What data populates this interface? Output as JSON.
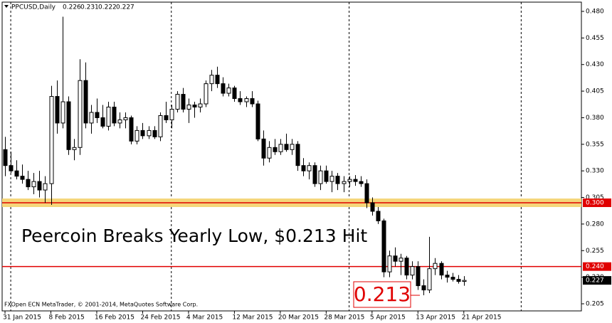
{
  "chart_data": {
    "type": "candlestick",
    "symbol": "PPCUSD,Daily",
    "annotation": "Peercoin Breaks Yearly Low, $0.213 Hit",
    "callout": {
      "value": 0.213,
      "label": "0.213"
    },
    "footer": "FXOpen ECN MetaTrader, © 2001-2014, MetaQuotes Software Corp.",
    "categories": [
      "31 Jan 2015",
      null,
      null,
      null,
      null,
      null,
      null,
      null,
      "8 Feb 2015",
      null,
      null,
      null,
      null,
      null,
      null,
      null,
      "16 Feb 2015",
      null,
      null,
      null,
      null,
      null,
      null,
      null,
      "24 Feb 2015",
      null,
      null,
      null,
      null,
      null,
      null,
      null,
      "4 Mar 2015",
      null,
      null,
      null,
      null,
      null,
      null,
      null,
      "12 Mar 2015",
      null,
      null,
      null,
      null,
      null,
      null,
      null,
      "20 Mar 2015",
      null,
      null,
      null,
      null,
      null,
      null,
      null,
      "28 Mar 2015",
      null,
      null,
      null,
      null,
      null,
      null,
      null,
      "5 Apr 2015",
      null,
      null,
      null,
      null,
      null,
      null,
      null,
      "13 Apr 2015",
      null,
      null,
      null,
      null,
      null,
      null,
      null,
      "21 Apr 2015"
    ],
    "open": [
      0.35,
      0.335,
      0.33,
      0.325,
      0.322,
      0.315,
      0.32,
      0.312,
      0.318,
      0.4,
      0.375,
      0.395,
      0.35,
      0.352,
      0.415,
      0.375,
      0.385,
      0.38,
      0.372,
      0.39,
      0.375,
      0.378,
      0.38,
      0.358,
      0.368,
      0.363,
      0.368,
      0.362,
      0.382,
      0.378,
      0.388,
      0.402,
      0.388,
      0.392,
      0.39,
      0.393,
      0.412,
      0.42,
      0.412,
      0.403,
      0.408,
      0.398,
      0.395,
      0.398,
      0.393,
      0.36,
      0.342,
      0.352,
      0.348,
      0.355,
      0.35,
      0.355,
      0.335,
      0.33,
      0.335,
      0.318,
      0.33,
      0.32,
      0.325,
      0.318,
      0.32,
      0.322,
      0.32,
      0.318,
      0.3,
      0.292,
      0.283,
      0.235,
      0.25,
      0.245,
      0.248,
      0.232,
      0.24,
      0.222,
      0.218,
      0.238,
      0.243,
      0.232,
      0.23,
      0.228,
      0.226
    ],
    "high": [
      0.362,
      0.348,
      0.34,
      0.336,
      0.33,
      0.328,
      0.33,
      0.325,
      0.41,
      0.415,
      0.475,
      0.4,
      0.36,
      0.435,
      0.432,
      0.392,
      0.398,
      0.392,
      0.395,
      0.395,
      0.385,
      0.385,
      0.382,
      0.372,
      0.375,
      0.372,
      0.372,
      0.385,
      0.395,
      0.392,
      0.405,
      0.408,
      0.398,
      0.395,
      0.398,
      0.415,
      0.425,
      0.428,
      0.418,
      0.412,
      0.41,
      0.405,
      0.4,
      0.405,
      0.396,
      0.368,
      0.358,
      0.36,
      0.36,
      0.365,
      0.36,
      0.358,
      0.342,
      0.338,
      0.338,
      0.335,
      0.335,
      0.33,
      0.328,
      0.325,
      0.325,
      0.326,
      0.325,
      0.322,
      0.305,
      0.296,
      0.285,
      0.255,
      0.258,
      0.252,
      0.25,
      0.245,
      0.245,
      0.228,
      0.268,
      0.248,
      0.245,
      0.236,
      0.234,
      0.232,
      0.231
    ],
    "low": [
      0.325,
      0.328,
      0.322,
      0.318,
      0.312,
      0.308,
      0.305,
      0.3,
      0.298,
      0.365,
      0.37,
      0.345,
      0.34,
      0.345,
      0.37,
      0.365,
      0.375,
      0.37,
      0.368,
      0.372,
      0.37,
      0.37,
      0.355,
      0.355,
      0.36,
      0.36,
      0.36,
      0.358,
      0.375,
      0.37,
      0.385,
      0.385,
      0.375,
      0.38,
      0.385,
      0.39,
      0.405,
      0.408,
      0.4,
      0.4,
      0.395,
      0.392,
      0.39,
      0.39,
      0.358,
      0.335,
      0.338,
      0.345,
      0.345,
      0.348,
      0.345,
      0.33,
      0.325,
      0.322,
      0.315,
      0.312,
      0.318,
      0.31,
      0.312,
      0.31,
      0.315,
      0.316,
      0.315,
      0.295,
      0.288,
      0.28,
      0.23,
      0.23,
      0.24,
      0.232,
      0.228,
      0.228,
      0.218,
      0.213,
      0.215,
      0.232,
      0.228,
      0.225,
      0.226,
      0.224,
      0.222
    ],
    "close": [
      0.335,
      0.33,
      0.325,
      0.322,
      0.315,
      0.32,
      0.312,
      0.318,
      0.4,
      0.375,
      0.395,
      0.35,
      0.352,
      0.415,
      0.375,
      0.385,
      0.38,
      0.372,
      0.39,
      0.375,
      0.378,
      0.38,
      0.358,
      0.368,
      0.363,
      0.368,
      0.362,
      0.382,
      0.378,
      0.388,
      0.402,
      0.388,
      0.392,
      0.39,
      0.393,
      0.412,
      0.42,
      0.412,
      0.403,
      0.408,
      0.398,
      0.395,
      0.398,
      0.393,
      0.36,
      0.342,
      0.352,
      0.348,
      0.355,
      0.35,
      0.355,
      0.335,
      0.33,
      0.335,
      0.318,
      0.33,
      0.32,
      0.325,
      0.318,
      0.32,
      0.322,
      0.32,
      0.318,
      0.3,
      0.292,
      0.283,
      0.235,
      0.25,
      0.245,
      0.248,
      0.232,
      0.24,
      0.222,
      0.218,
      0.238,
      0.243,
      0.232,
      0.23,
      0.228,
      0.226,
      0.227
    ],
    "xlim": [
      -0.5,
      100.5
    ],
    "xgrid": [
      1,
      29,
      60,
      90
    ],
    "ylim": [
      0.1983,
      0.4887
    ],
    "yticks": [
      0.205,
      {
        "value": 0.23,
        "label": "0.230"
      },
      0.255,
      {
        "value": 0.28,
        "label": "0.280"
      },
      0.305,
      {
        "value": 0.33,
        "label": "0.330"
      },
      0.355,
      {
        "value": 0.38,
        "label": "0.380"
      },
      0.405,
      {
        "value": 0.43,
        "label": "0.430"
      },
      0.455,
      {
        "value": 0.48,
        "label": "0.480"
      }
    ],
    "hlines": [
      {
        "value": 0.3,
        "label": "0.300",
        "color": "#e00000",
        "band": 0.004,
        "band_color": "#f5d67a"
      },
      {
        "value": 0.24,
        "label": "0.240",
        "color": "#e00000"
      }
    ],
    "last_price": 0.227
  }
}
